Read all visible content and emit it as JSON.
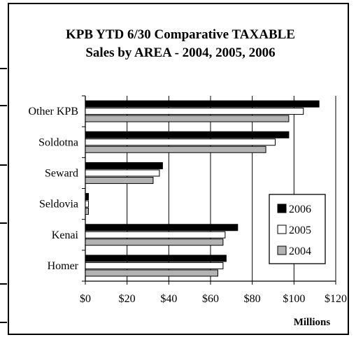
{
  "chart_data": {
    "type": "bar",
    "orientation": "horizontal",
    "title": [
      "KPB YTD 6/30 Comparative TAXABLE",
      "Sales by AREA - 2004, 2005, 2006"
    ],
    "xlabel": "Millions",
    "xlim": [
      0,
      120
    ],
    "xticks": [
      0,
      20,
      40,
      60,
      80,
      100,
      120
    ],
    "xtick_labels": [
      "$0",
      "$20",
      "$40",
      "$60",
      "$80",
      "$100",
      "$120"
    ],
    "grid": "vertical",
    "categories": [
      "Other KPB",
      "Soldotna",
      "Seward",
      "Seldovia",
      "Kenai",
      "Homer"
    ],
    "series": [
      {
        "name": "2006",
        "color": "#000000",
        "values": [
          112,
          97.5,
          37,
          1.5,
          73,
          67.5
        ]
      },
      {
        "name": "2005",
        "color": "#ffffff",
        "values": [
          104.5,
          91,
          35.5,
          1.5,
          67,
          66
        ]
      },
      {
        "name": "2004",
        "color": "#b3b3b3",
        "values": [
          97.5,
          86.5,
          32.5,
          1.5,
          66,
          63.5
        ]
      }
    ],
    "legend": {
      "position": "right",
      "order": [
        "2006",
        "2005",
        "2004"
      ]
    }
  }
}
